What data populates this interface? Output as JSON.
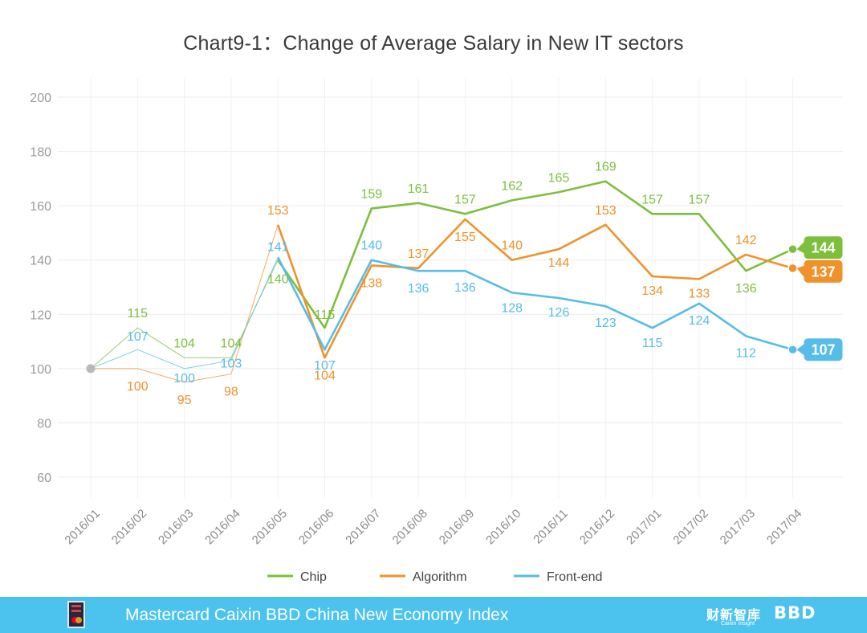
{
  "chart_data": {
    "type": "line",
    "title": "Chart9-1：Change of Average Salary in New IT sectors",
    "categories": [
      "2016/01",
      "2016/02",
      "2016/03",
      "2016/04",
      "2016/05",
      "2016/06",
      "2016/07",
      "2016/08",
      "2016/09",
      "2016/10",
      "2016/11",
      "2016/12",
      "2017/01",
      "2017/02",
      "2017/03",
      "2017/04"
    ],
    "ylim": [
      60,
      200
    ],
    "yticks": [
      60,
      80,
      100,
      120,
      140,
      160,
      180,
      200
    ],
    "xlabel": "",
    "ylabel": "",
    "grid": true,
    "legend_position": "bottom-center",
    "start_value": 100,
    "series": [
      {
        "name": "Chip",
        "color": "#7dbf3d",
        "values": [
          100,
          115,
          104,
          104,
          140,
          115,
          159,
          161,
          157,
          162,
          165,
          169,
          157,
          157,
          136,
          144
        ],
        "labels": [
          null,
          "115",
          "104",
          "104",
          "140",
          "115",
          "159",
          "161",
          "157",
          "162",
          "165",
          "169",
          "157",
          "157",
          "136",
          "144"
        ]
      },
      {
        "name": "Algorithm",
        "color": "#f0922b",
        "values": [
          100,
          100,
          95,
          98,
          153,
          104,
          138,
          137,
          155,
          140,
          144,
          153,
          134,
          133,
          142,
          137
        ],
        "labels": [
          null,
          "100",
          "95",
          "98",
          "153",
          "104",
          "138",
          "137",
          "155",
          "140",
          "144",
          "153",
          "134",
          "133",
          "142",
          "137"
        ]
      },
      {
        "name": "Front-end",
        "color": "#56bde8",
        "values": [
          100,
          107,
          100,
          103,
          141,
          107,
          140,
          136,
          136,
          128,
          126,
          123,
          115,
          124,
          112,
          107
        ],
        "labels": [
          null,
          "107",
          "100",
          "103",
          "141",
          "107",
          "140",
          "136",
          "136",
          "128",
          "126",
          "123",
          "115",
          "124",
          "112",
          "107"
        ]
      }
    ]
  },
  "footer": {
    "title": "Mastercard Caixin BBD China New Economy Index",
    "brand_cn": "财新智库",
    "brand_cn_sub": "Caixin Insight",
    "brand_bbd": "BBD",
    "brand_bbd_color": "#ffffff",
    "background_color": "#4cc3ee"
  }
}
